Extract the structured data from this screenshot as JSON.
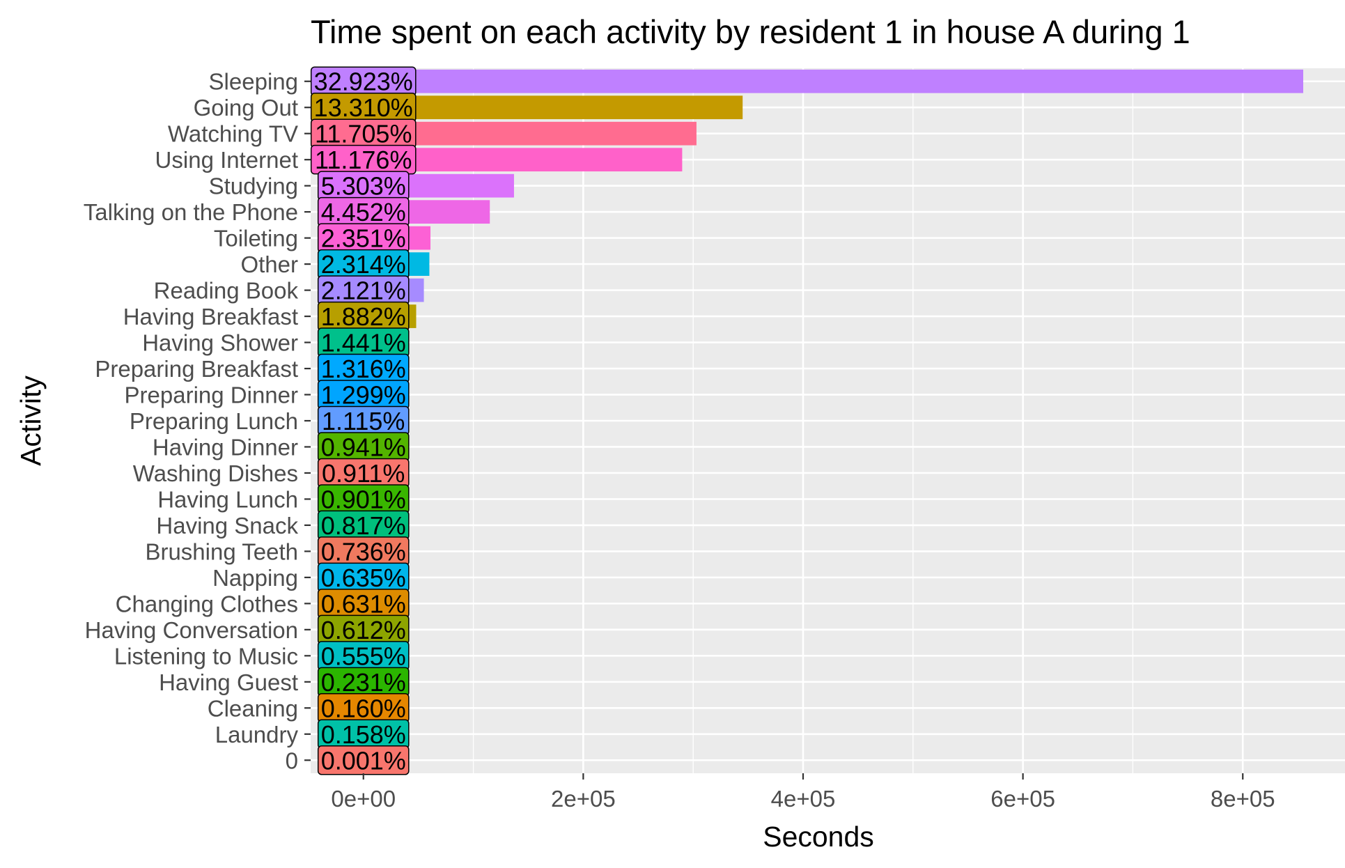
{
  "chart_data": {
    "type": "bar",
    "orientation": "horizontal",
    "title": "Time spent on each activity by resident 1 in house A during 1",
    "xlabel": "Seconds",
    "ylabel": "Activity",
    "xlim": [
      -48000,
      893000
    ],
    "x_ticks": [
      0,
      200000,
      400000,
      600000,
      800000
    ],
    "x_tick_labels": [
      "0e+00",
      "2e+05",
      "4e+05",
      "6e+05",
      "8e+05"
    ],
    "grid": true,
    "legend": "none",
    "panel_background": "#EBEBEB",
    "categories": [
      "Sleeping",
      "Going Out",
      "Watching TV",
      "Using Internet",
      "Studying",
      "Talking on the Phone",
      "Toileting",
      "Other",
      "Reading Book",
      "Having Breakfast",
      "Having Shower",
      "Preparing Breakfast",
      "Preparing Dinner",
      "Preparing Lunch",
      "Having Dinner",
      "Washing Dishes",
      "Having Lunch",
      "Having Snack",
      "Brushing Teeth",
      "Napping",
      "Changing Clothes",
      "Having Conversation",
      "Listening to Music",
      "Having Guest",
      "Cleaning",
      "Laundry",
      "0"
    ],
    "values": [
      855000,
      345000,
      303000,
      290000,
      137000,
      115000,
      61000,
      60000,
      55000,
      48000,
      37000,
      34000,
      33500,
      28800,
      24300,
      23500,
      23200,
      21000,
      19000,
      16400,
      16300,
      15800,
      14300,
      6000,
      4100,
      4100,
      30
    ],
    "labels": [
      "32.923%",
      "13.310%",
      "11.705%",
      "11.176%",
      "5.303%",
      "4.452%",
      "2.351%",
      "2.314%",
      "2.121%",
      "1.882%",
      "1.441%",
      "1.316%",
      "1.299%",
      "1.115%",
      "0.941%",
      "0.911%",
      "0.901%",
      "0.817%",
      "0.736%",
      "0.635%",
      "0.631%",
      "0.612%",
      "0.555%",
      "0.231%",
      "0.160%",
      "0.158%",
      "0.001%"
    ],
    "colors": [
      "#BF80FF",
      "#C49A00",
      "#FF6C90",
      "#FF61C9",
      "#DB72FB",
      "#EE67E6",
      "#FC61D5",
      "#00B9E3",
      "#A68BFF",
      "#B79F00",
      "#00C08B",
      "#00A9FF",
      "#00A5FF",
      "#619CFF",
      "#53B400",
      "#F8766D",
      "#39B600",
      "#00BF7D",
      "#F0795F",
      "#00B6EB",
      "#DE8C00",
      "#8DA500",
      "#00BFC4",
      "#2BB500",
      "#E58700",
      "#00C1A7",
      "#F8766D"
    ]
  }
}
